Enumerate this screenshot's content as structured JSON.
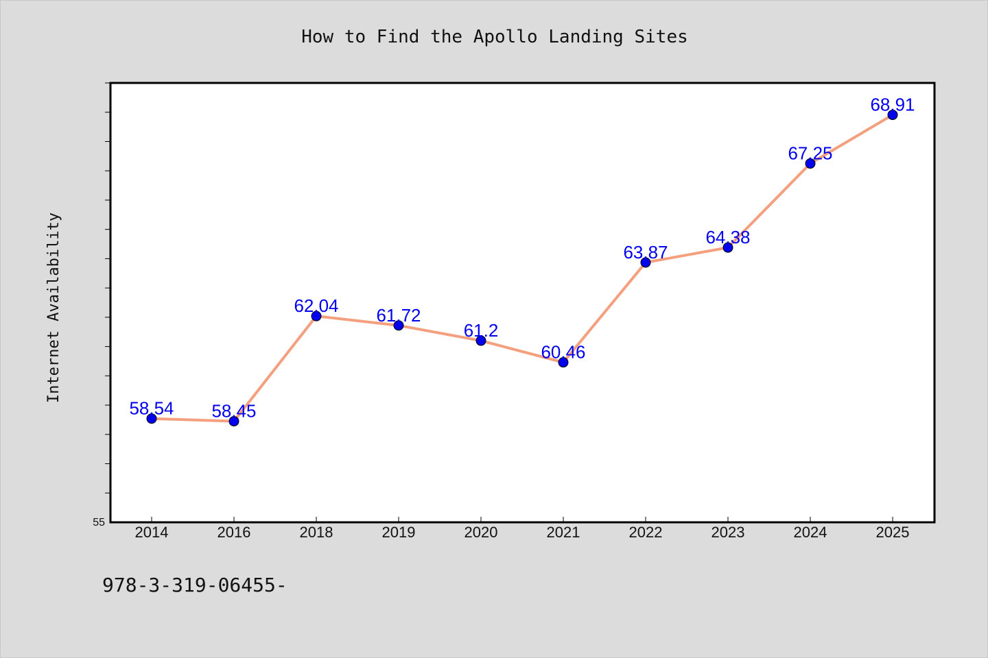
{
  "chart_data": {
    "type": "line",
    "title": "How to Find the Apollo Landing Sites",
    "xlabel": "",
    "ylabel": "Internet Availability",
    "categories": [
      "2014",
      "2016",
      "2018",
      "2019",
      "2020",
      "2021",
      "2022",
      "2023",
      "2024",
      "2025"
    ],
    "series": [
      {
        "values": [
          58.54,
          58.45,
          62.04,
          61.72,
          61.2,
          60.46,
          63.87,
          64.38,
          67.25,
          68.91
        ],
        "labels": [
          "58.54",
          "58.45",
          "62.04",
          "61.72",
          "61.2",
          "60.46",
          "63.87",
          "64.38",
          "67.25",
          "68.91"
        ],
        "line_color": "#f4a07e",
        "marker_color": "#0000ee",
        "label_color": "#0000ee"
      }
    ],
    "ylim": [
      55,
      70
    ],
    "yticks_labeled": [
      "55"
    ],
    "grid": false,
    "legend": "none"
  },
  "footer": {
    "text": "978-3-319-06455-"
  },
  "colors": {
    "background": "#dcdcdc",
    "plot_background": "#ffffff",
    "axis": "#000000"
  }
}
